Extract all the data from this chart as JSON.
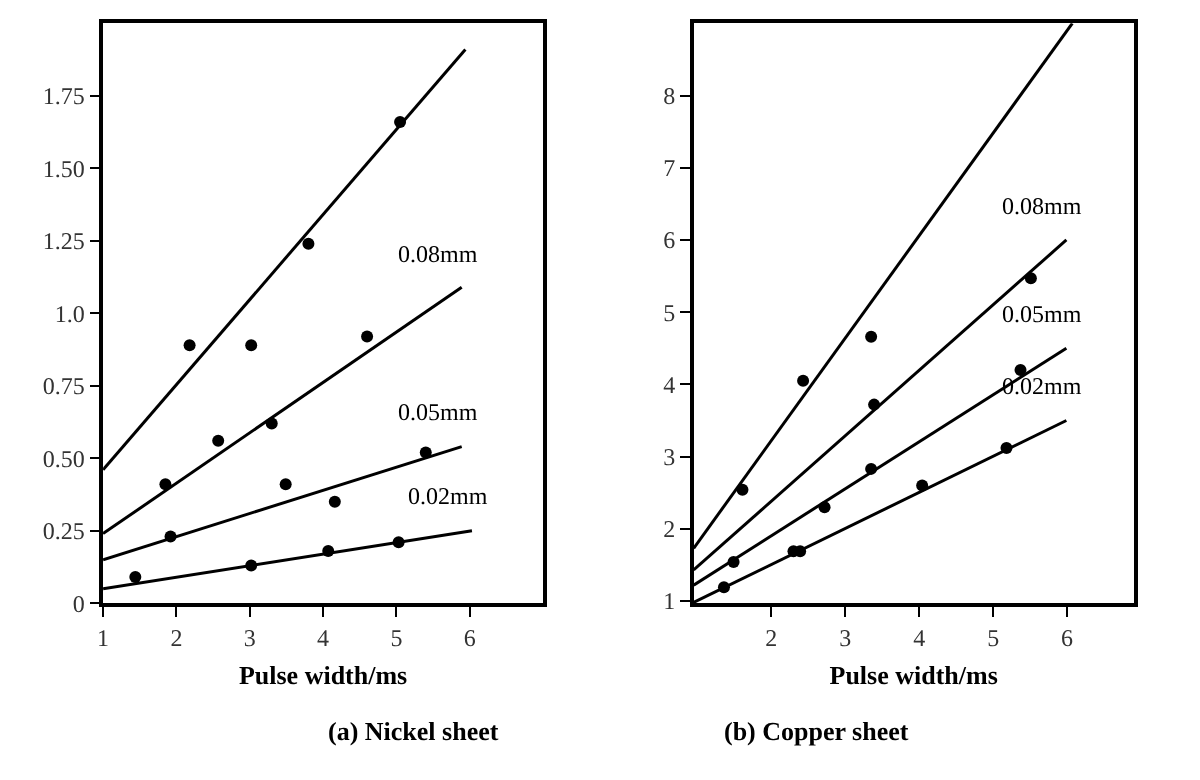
{
  "chart_data": [
    {
      "type": "scatter",
      "title": "(a) Nickel sheet",
      "xlabel": "Pulse width/ms",
      "xlim": [
        1,
        7
      ],
      "ylim": [
        0,
        2.0
      ],
      "xticks": [
        1,
        2,
        3,
        4,
        5,
        6
      ],
      "yticks": [
        0,
        0.25,
        {
          "value": 0.5,
          "label": "0.50"
        },
        0.75,
        {
          "value": 1.0,
          "label": "1.0"
        },
        1.25,
        {
          "value": 1.5,
          "label": "1.50"
        },
        1.75
      ],
      "legend": false,
      "series": [
        {
          "type": "line",
          "color": "#000000",
          "x": [
            1,
            5.94
          ],
          "values": [
            0.46,
            1.91
          ]
        },
        {
          "type": "line",
          "name": "0.08mm",
          "color": "#000000",
          "x": [
            1,
            5.89
          ],
          "values": [
            0.24,
            1.09
          ]
        },
        {
          "type": "line",
          "name": "0.05mm",
          "color": "#000000",
          "x": [
            1,
            5.89
          ],
          "values": [
            0.15,
            0.54
          ]
        },
        {
          "type": "line",
          "name": "0.02mm",
          "color": "#000000",
          "x": [
            1,
            6.03
          ],
          "values": [
            0.05,
            0.25
          ]
        },
        {
          "marker": "circle",
          "color": "#000000",
          "x": [
            1.44,
            1.85,
            1.92,
            2.18,
            2.57,
            3.02,
            3.02,
            3.3,
            3.49,
            3.8,
            4.07,
            4.16,
            4.6,
            5.03,
            5.05,
            5.4
          ],
          "values": [
            0.09,
            0.41,
            0.23,
            0.89,
            0.56,
            0.89,
            0.13,
            0.62,
            0.41,
            1.24,
            0.18,
            0.35,
            0.92,
            0.21,
            1.66,
            0.52
          ]
        }
      ]
    },
    {
      "type": "scatter",
      "title": "(b) Copper sheet",
      "xlabel": "Pulse width/ms",
      "xlim": [
        0.95,
        6.9
      ],
      "ylim": [
        0.97,
        9.0
      ],
      "xticks": [
        2,
        3,
        4,
        5,
        6
      ],
      "yticks": [
        1,
        2,
        3,
        4,
        5,
        6,
        7,
        8
      ],
      "legend": false,
      "series": [
        {
          "type": "line",
          "color": "#000000",
          "x": [
            0.95,
            6.07
          ],
          "values": [
            1.73,
            9.0
          ]
        },
        {
          "type": "line",
          "name": "0.08mm",
          "color": "#000000",
          "x": [
            0.95,
            5.99
          ],
          "values": [
            1.43,
            6.0
          ]
        },
        {
          "type": "line",
          "name": "0.05mm",
          "color": "#000000",
          "x": [
            0.95,
            5.99
          ],
          "values": [
            1.22,
            4.5
          ]
        },
        {
          "type": "line",
          "name": "0.02mm",
          "color": "#000000",
          "x": [
            0.95,
            5.99
          ],
          "values": [
            0.98,
            3.5
          ]
        },
        {
          "marker": "circle",
          "color": "#000000",
          "x": [
            1.36,
            1.49,
            1.61,
            2.3,
            2.39,
            2.43,
            2.72,
            3.35,
            3.35,
            3.39,
            4.04,
            5.18,
            5.37,
            5.51
          ],
          "values": [
            1.19,
            1.54,
            2.54,
            1.69,
            1.69,
            4.05,
            2.3,
            4.66,
            2.83,
            3.72,
            2.6,
            3.12,
            4.2,
            5.47
          ]
        }
      ]
    }
  ]
}
